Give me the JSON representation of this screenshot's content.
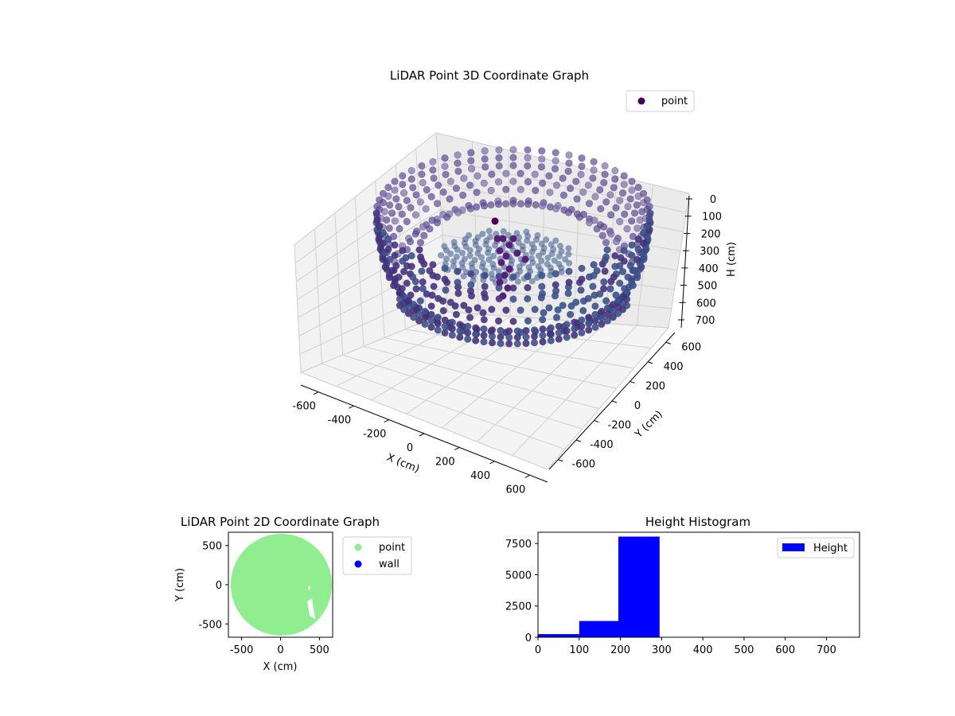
{
  "chart_data": [
    {
      "type": "scatter",
      "projection": "3d",
      "title": "LiDAR Point 3D Coordinate Graph",
      "xlabel": "X (cm)",
      "ylabel": "Y (cm)",
      "zlabel": "H (cm)",
      "xlim": [
        -700,
        700
      ],
      "ylim": [
        -700,
        700
      ],
      "zlim": [
        0,
        780
      ],
      "z_inverted": true,
      "x_ticks": [
        "-600",
        "-400",
        "-200",
        "0",
        "200",
        "400",
        "600"
      ],
      "y_ticks": [
        "-600",
        "-400",
        "-200",
        "0",
        "200",
        "400",
        "600"
      ],
      "z_ticks": [
        "0",
        "100",
        "200",
        "300",
        "400",
        "500",
        "600",
        "700"
      ],
      "grid": true,
      "legend": {
        "placement": "top-right",
        "entries": [
          {
            "label": "point",
            "color": "#440154"
          }
        ]
      },
      "series": [
        {
          "name": "point",
          "color": "#440154",
          "colormap": "viridis",
          "description_values": {
            "outer_wall_radius": 650,
            "wall_height_range": [
              60,
              700
            ],
            "floor_height": 250
          }
        }
      ]
    },
    {
      "type": "scatter",
      "title": "LiDAR Point 2D Coordinate Graph",
      "xlabel": "X (cm)",
      "ylabel": "Y (cm)",
      "xlim": [
        -670,
        670
      ],
      "ylim": [
        -670,
        670
      ],
      "x_ticks": [
        "-500",
        "0",
        "500"
      ],
      "y_ticks": [
        "-500",
        "0",
        "500"
      ],
      "legend": {
        "placement": "outside-right",
        "entries": [
          {
            "label": "point",
            "color": "#90ee90"
          },
          {
            "label": "wall",
            "color": "#0000ff"
          }
        ]
      },
      "series": [
        {
          "name": "point",
          "color": "#90ee90",
          "center": [
            0,
            0
          ],
          "radius": 650
        },
        {
          "name": "wall",
          "color": "#0000ff"
        }
      ]
    },
    {
      "type": "bar",
      "title": "Height Histogram",
      "xlim": [
        0,
        780
      ],
      "ylim": [
        0,
        8400
      ],
      "x_ticks": [
        "0",
        "100",
        "200",
        "300",
        "400",
        "500",
        "600",
        "700"
      ],
      "y_ticks": [
        "0",
        "2500",
        "5000",
        "7500"
      ],
      "legend": {
        "placement": "top-right",
        "entries": [
          {
            "label": "Height",
            "color": "#0000ff"
          }
        ]
      },
      "series": [
        {
          "name": "Height",
          "color": "#0000ff",
          "bins": [
            {
              "x0": 0,
              "x1": 100,
              "count": 250
            },
            {
              "x0": 100,
              "x1": 195,
              "count": 1300
            },
            {
              "x0": 195,
              "x1": 295,
              "count": 8050
            }
          ]
        }
      ]
    }
  ]
}
